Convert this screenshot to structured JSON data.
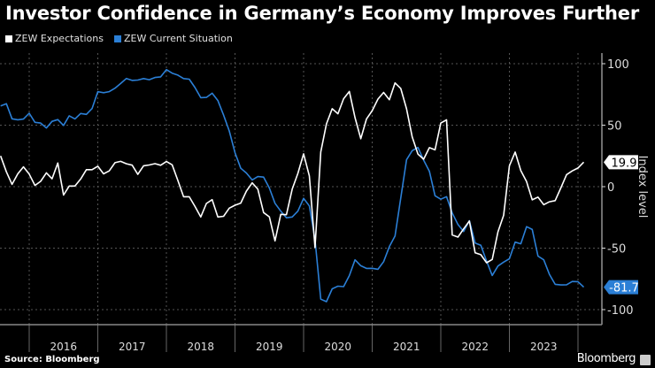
{
  "title": "Investor Confidence in Germany’s Economy Improves Further",
  "source": "Source: Bloomberg",
  "brand": "Bloomberg",
  "colors": {
    "expectations": "#ffffff",
    "current": "#2b7fd6",
    "background": "#000000",
    "grid": "#555555"
  },
  "chart_data": {
    "type": "line",
    "title": "Investor Confidence in Germany’s Economy Improves Further",
    "ylabel": "Index level",
    "ylim": [
      -100,
      100
    ],
    "yticks": [
      100,
      50,
      0,
      -50,
      -100
    ],
    "xticks": [
      "2016",
      "2017",
      "2018",
      "2019",
      "2020",
      "2021",
      "2022",
      "2023"
    ],
    "x_start": "2015-08",
    "x_end": "2024-02",
    "frequency": "monthly",
    "grid": true,
    "legend": "top-left",
    "series": [
      {
        "name": "ZEW Expectations",
        "last_label": "19.9",
        "values": [
          25.0,
          12.1,
          1.9,
          10.4,
          16.1,
          10.2,
          1.0,
          4.3,
          11.2,
          6.4,
          19.2,
          -6.8,
          0.5,
          0.5,
          6.2,
          13.8,
          13.8,
          16.6,
          10.4,
          12.8,
          19.5,
          20.6,
          18.6,
          17.5,
          10.0,
          17.0,
          17.6,
          18.7,
          17.4,
          20.4,
          17.8,
          5.1,
          -8.2,
          -8.2,
          -16.1,
          -24.7,
          -13.7,
          -10.6,
          -24.7,
          -24.1,
          -17.5,
          -15.1,
          -13.4,
          -3.6,
          3.1,
          -2.1,
          -21.1,
          -24.5,
          -44.1,
          -22.5,
          -22.8,
          -2.1,
          10.7,
          26.7,
          8.7,
          -49.5,
          28.2,
          51.0,
          63.4,
          59.3,
          71.5,
          77.4,
          56.1,
          39.0,
          55.0,
          61.8,
          71.2,
          76.6,
          70.7,
          84.4,
          79.8,
          63.3,
          40.4,
          26.5,
          22.3,
          31.7,
          29.9,
          51.7,
          54.3,
          -39.3,
          -41.0,
          -34.3,
          -28.0,
          -53.8,
          -55.3,
          -61.9,
          -59.2,
          -36.7,
          -23.3,
          16.9,
          28.1,
          13.0,
          4.1,
          -10.7,
          -8.5,
          -14.7,
          -12.3,
          -11.4,
          -1.1,
          9.8,
          12.8,
          15.2,
          19.9
        ]
      },
      {
        "name": "ZEW Current Situation",
        "last_label": "-81.7",
        "values": [
          65.7,
          67.5,
          55.2,
          54.4,
          55.0,
          59.7,
          52.3,
          51.7,
          47.7,
          53.1,
          54.5,
          49.8,
          57.6,
          55.1,
          59.5,
          58.8,
          63.5,
          77.3,
          76.4,
          77.3,
          80.1,
          83.9,
          88.0,
          86.4,
          86.7,
          87.9,
          87.0,
          88.8,
          89.3,
          95.2,
          92.3,
          90.7,
          87.9,
          87.4,
          80.6,
          72.4,
          72.6,
          76.0,
          70.1,
          58.2,
          45.3,
          27.6,
          15.0,
          11.1,
          5.5,
          8.2,
          7.8,
          -1.1,
          -13.5,
          -19.9,
          -25.3,
          -24.7,
          -19.9,
          -9.5,
          -15.7,
          -43.1,
          -91.5,
          -93.5,
          -83.1,
          -80.9,
          -81.3,
          -72.3,
          -59.5,
          -64.3,
          -66.5,
          -66.4,
          -67.2,
          -61.0,
          -48.8,
          -40.1,
          -9.1,
          21.9,
          29.3,
          31.9,
          21.6,
          12.5,
          -7.4,
          -10.2,
          -8.1,
          -21.4,
          -30.8,
          -36.5,
          -27.6,
          -45.8,
          -47.6,
          -60.5,
          -72.2,
          -64.5,
          -61.4,
          -58.6,
          -45.1,
          -46.5,
          -32.5,
          -34.8,
          -56.5,
          -59.5,
          -71.3,
          -79.4,
          -79.9,
          -79.8,
          -77.1,
          -77.3,
          -81.7
        ]
      }
    ]
  }
}
